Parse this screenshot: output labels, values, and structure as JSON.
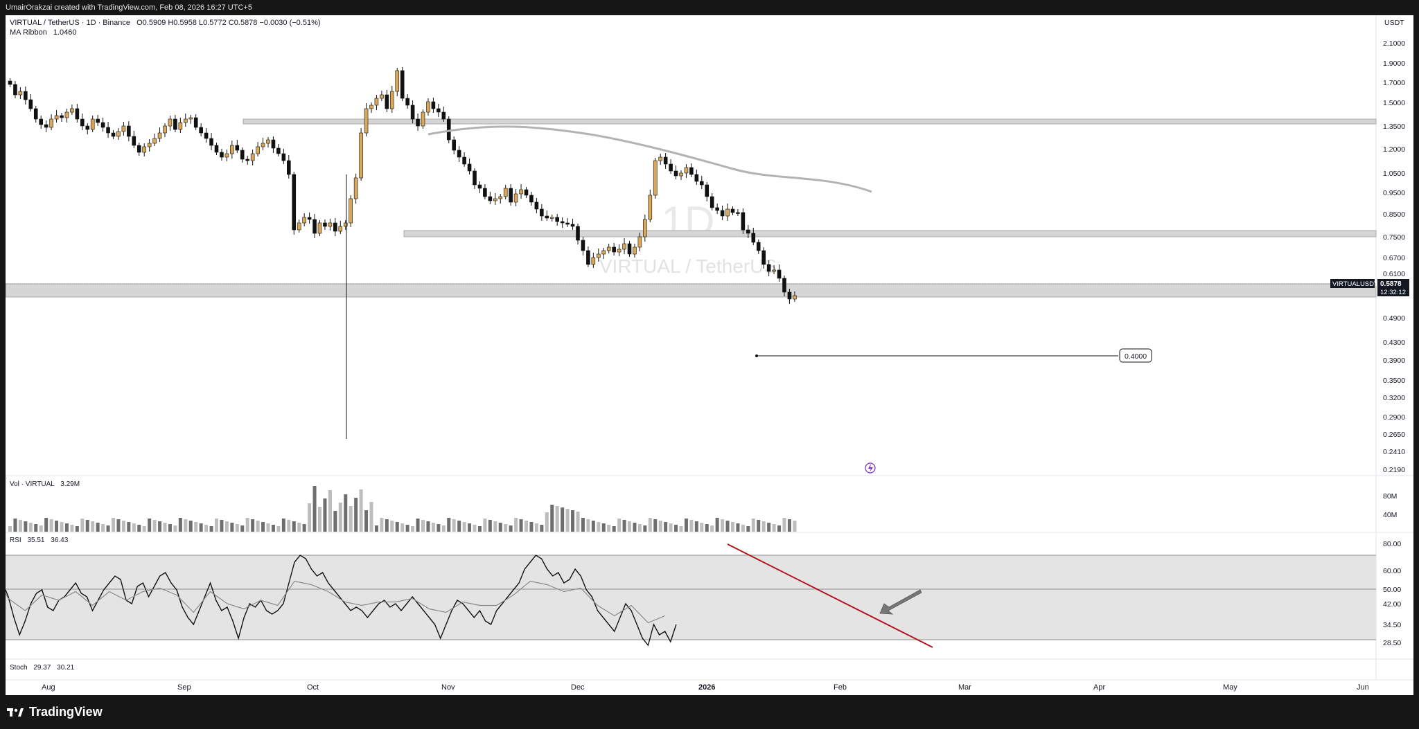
{
  "header": {
    "attribution": "UmairOrakzai created with TradingView.com, Feb 08, 2026 16:27 UTC+5"
  },
  "legend": {
    "symbol": "VIRTUAL / TetherUS · 1D · Binance",
    "ohlc": "O0.5909 H0.5958 L0.5772 C0.5878 −0.0030 (−0.51%)",
    "indicator_name": "MA Ribbon",
    "indicator_value": "1.0460",
    "volume_name": "Vol · VIRTUAL",
    "volume_value": "3.29M",
    "rsi_name": "RSI",
    "rsi_value": "35.51",
    "rsi_ma_value": "36.43",
    "stoch_name": "Stoch",
    "stoch_k": "29.37",
    "stoch_d": "30.21"
  },
  "watermark": {
    "interval": "1D",
    "pair": "VIRTUAL / TetherUS"
  },
  "price_axis": {
    "currency": "USDT",
    "ticks": [
      "2.1000",
      "1.9000",
      "1.7000",
      "1.5000",
      "1.3500",
      "1.2000",
      "1.0500",
      "0.9500",
      "0.8500",
      "0.7500",
      "0.6700",
      "0.6100",
      "0.4900",
      "0.4300",
      "0.3900",
      "0.3500",
      "0.3200",
      "0.2900",
      "0.2650",
      "0.2410",
      "0.2190"
    ],
    "symbol_tag": "VIRTUALUSDT",
    "last_price": "0.5878",
    "countdown": "12:32:12"
  },
  "volume_axis": {
    "ticks": [
      "80M",
      "40M"
    ]
  },
  "rsi_axis": {
    "ticks": [
      "80.00",
      "60.00",
      "50.00",
      "42.00",
      "34.50",
      "28.50"
    ]
  },
  "time_axis": {
    "labels": [
      "Aug",
      "Sep",
      "Oct",
      "Nov",
      "Dec",
      "2026",
      "Feb",
      "Mar",
      "Apr",
      "May",
      "Jun"
    ]
  },
  "annotations": {
    "target_label": "0.4000"
  },
  "colors": {
    "bull": "#d9a85a",
    "bear": "#111111",
    "zone": "#d6d6d6",
    "ma": "#b3b3b3",
    "trendline": "#b5121b",
    "rsi_band": "#e4e4e4"
  },
  "footer": {
    "brand": "TradingView"
  }
}
